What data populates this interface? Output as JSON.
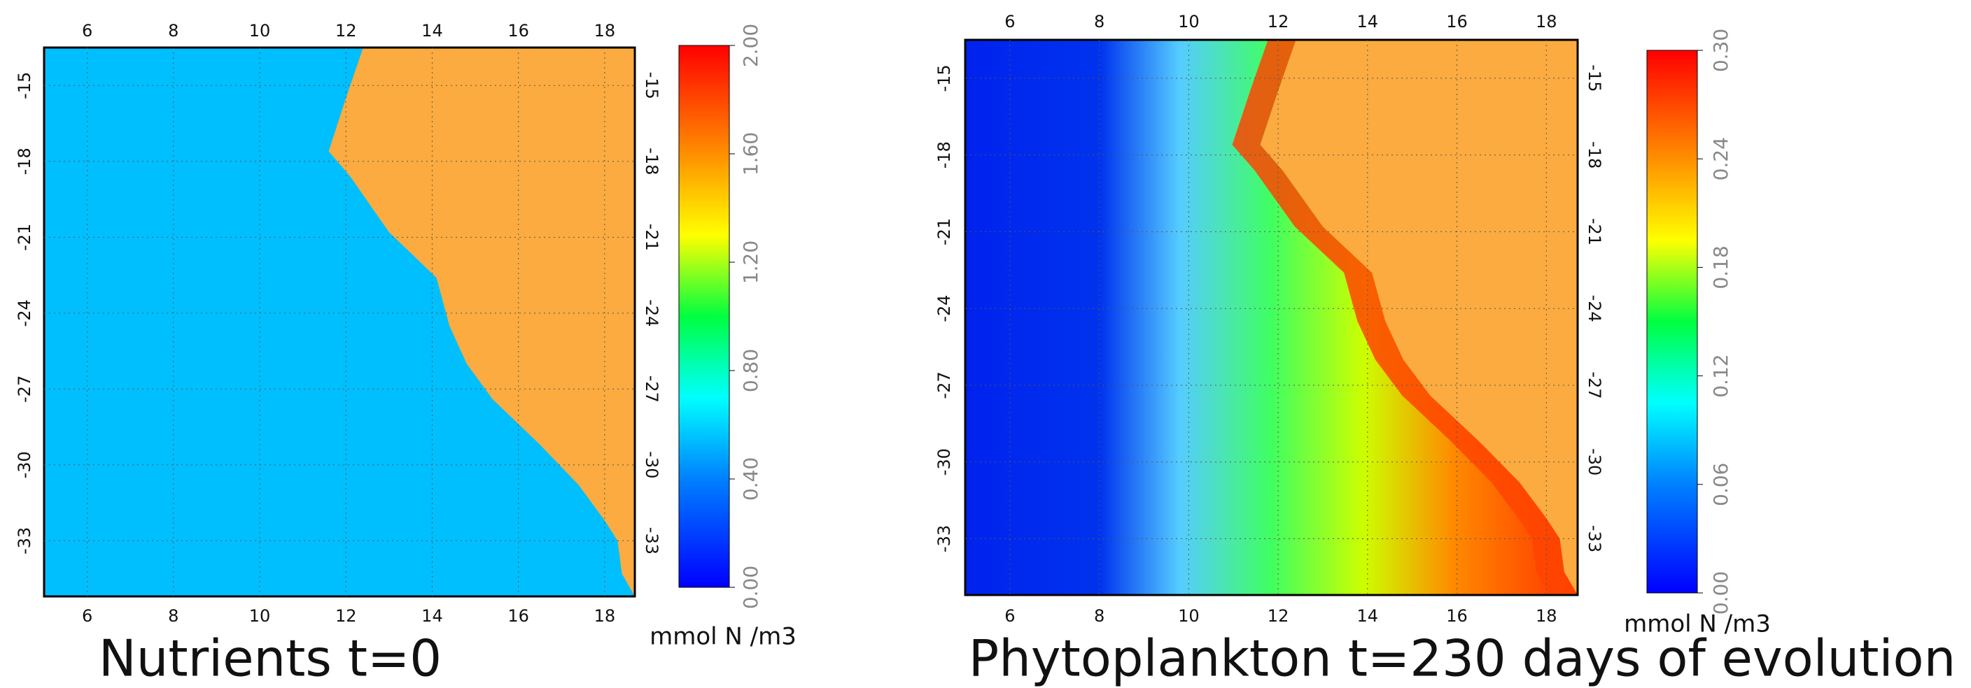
{
  "chart_data": [
    {
      "type": "map",
      "title": "Nutrients t=0",
      "colorbar_label": "mmol N /m3",
      "xlim": [
        5,
        18.7
      ],
      "xticks": [
        6,
        8,
        10,
        12,
        14,
        16,
        18
      ],
      "ylim": [
        -35.2,
        -13.5
      ],
      "yticks": [
        -15,
        -18,
        -21,
        -24,
        -27,
        -30,
        -33
      ],
      "clim": [
        0,
        2
      ],
      "cticks": [
        {
          "value": 0,
          "label": "0.00"
        },
        {
          "value": 0.4,
          "label": "0.40"
        },
        {
          "value": 0.8,
          "label": "0.80"
        },
        {
          "value": 1.2,
          "label": "1.20"
        },
        {
          "value": 1.6,
          "label": "1.60"
        },
        {
          "value": 2,
          "label": "2.00"
        }
      ],
      "grid": true,
      "land_color": "#fbab3f",
      "sea_color": "#00bfff"
    },
    {
      "type": "map",
      "title": "Phytoplankton  t=230 days of evolution",
      "colorbar_label": "mmol N /m3",
      "xlim": [
        5,
        18.7
      ],
      "xticks": [
        6,
        8,
        10,
        12,
        14,
        16,
        18
      ],
      "ylim": [
        -35.2,
        -13.5
      ],
      "yticks": [
        -15,
        -18,
        -21,
        -24,
        -27,
        -30,
        -33
      ],
      "clim": [
        0,
        0.3
      ],
      "cticks": [
        {
          "value": 0,
          "label": "0.00"
        },
        {
          "value": 0.06,
          "label": "0.06"
        },
        {
          "value": 0.12,
          "label": "0.12"
        },
        {
          "value": 0.18,
          "label": "0.18"
        },
        {
          "value": 0.24,
          "label": "0.24"
        },
        {
          "value": 0.3,
          "label": "0.30"
        }
      ],
      "grid": true,
      "land_color": "#fbab3f",
      "sea_color": "#0033ee"
    }
  ]
}
